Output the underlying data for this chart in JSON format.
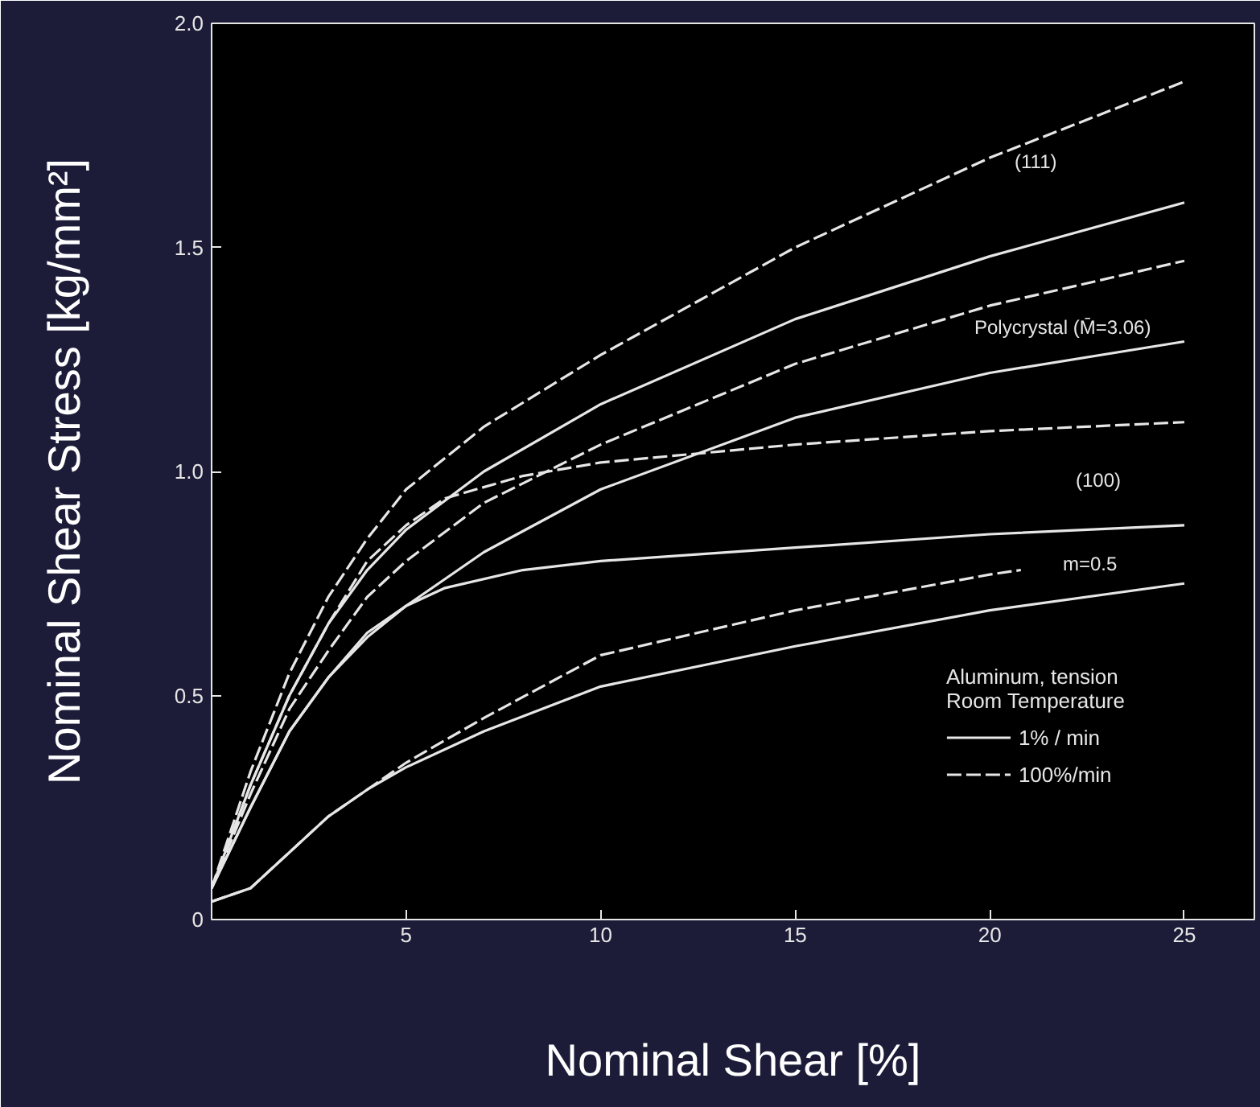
{
  "chart_data": {
    "type": "line",
    "xlabel": "Nominal Shear [%]",
    "ylabel": "Nominal Shear Stress [kg/mm²]",
    "legend_title": "Aluminum, tension\nRoom Temperature",
    "legend": "bottom right",
    "xlim": [
      0,
      26.8
    ],
    "ylim": [
      0,
      2.0
    ],
    "xticks": [
      5,
      10,
      15,
      20,
      25
    ],
    "yticks": [
      0,
      0.5,
      {
        "value": 1.0,
        "label": "1.0"
      },
      1.5,
      {
        "value": 2.0,
        "label": "2.0"
      }
    ],
    "grid": false,
    "series": [
      {
        "name": "100%/min",
        "color": "#e6e6e6",
        "line_style": "dashed",
        "x": [
          0,
          1,
          2,
          3,
          4,
          5,
          7,
          10,
          15,
          20,
          25
        ],
        "values": [
          0.07,
          0.33,
          0.55,
          0.72,
          0.85,
          0.96,
          1.1,
          1.26,
          1.5,
          1.7,
          1.87
        ]
      },
      {
        "name": "1% / min",
        "color": "#e6e6e6",
        "line_style": "solid",
        "x": [
          0,
          1,
          2,
          3,
          4,
          5,
          7,
          10,
          15,
          20,
          25
        ],
        "values": [
          0.07,
          0.3,
          0.5,
          0.66,
          0.78,
          0.87,
          1.0,
          1.15,
          1.34,
          1.48,
          1.6
        ]
      },
      {
        "color": "#e6e6e6",
        "line_style": "dashed",
        "x": [
          0,
          1,
          2,
          3,
          4,
          5,
          7,
          10,
          15,
          20,
          25
        ],
        "values": [
          0.07,
          0.28,
          0.47,
          0.6,
          0.72,
          0.8,
          0.93,
          1.06,
          1.24,
          1.37,
          1.47
        ]
      },
      {
        "color": "#e6e6e6",
        "line_style": "solid",
        "x": [
          0,
          1,
          2,
          3,
          4,
          5,
          7,
          10,
          15,
          20,
          25
        ],
        "values": [
          0.07,
          0.25,
          0.42,
          0.54,
          0.63,
          0.7,
          0.82,
          0.96,
          1.12,
          1.22,
          1.29
        ]
      },
      {
        "color": "#e6e6e6",
        "line_style": "dashed",
        "x": [
          0,
          1,
          2,
          3,
          4,
          5,
          6,
          8,
          10,
          15,
          20,
          25
        ],
        "values": [
          0.07,
          0.3,
          0.5,
          0.66,
          0.8,
          0.88,
          0.94,
          0.99,
          1.02,
          1.06,
          1.09,
          1.11
        ]
      },
      {
        "color": "#e6e6e6",
        "line_style": "solid",
        "x": [
          0,
          1,
          2,
          3,
          4,
          5,
          6,
          8,
          10,
          15,
          20,
          25
        ],
        "values": [
          0.07,
          0.25,
          0.42,
          0.54,
          0.64,
          0.7,
          0.74,
          0.78,
          0.8,
          0.83,
          0.86,
          0.88
        ]
      },
      {
        "color": "#e6e6e6",
        "line_style": "dashed",
        "x": [
          0,
          1,
          2,
          3,
          4,
          5,
          7,
          10,
          15,
          20,
          20.8
        ],
        "values": [
          0.04,
          0.07,
          0.15,
          0.23,
          0.29,
          0.35,
          0.45,
          0.59,
          0.69,
          0.77,
          0.78
        ]
      },
      {
        "color": "#e6e6e6",
        "line_style": "solid",
        "x": [
          0,
          1,
          2,
          3,
          4,
          5,
          7,
          10,
          15,
          20,
          25
        ],
        "values": [
          0.04,
          0.07,
          0.15,
          0.23,
          0.29,
          0.34,
          0.42,
          0.52,
          0.61,
          0.69,
          0.75
        ]
      }
    ],
    "annotations": [
      "(111)",
      "Polycrystal (M̄=3.06)",
      "(100)",
      "m=0.5"
    ]
  }
}
